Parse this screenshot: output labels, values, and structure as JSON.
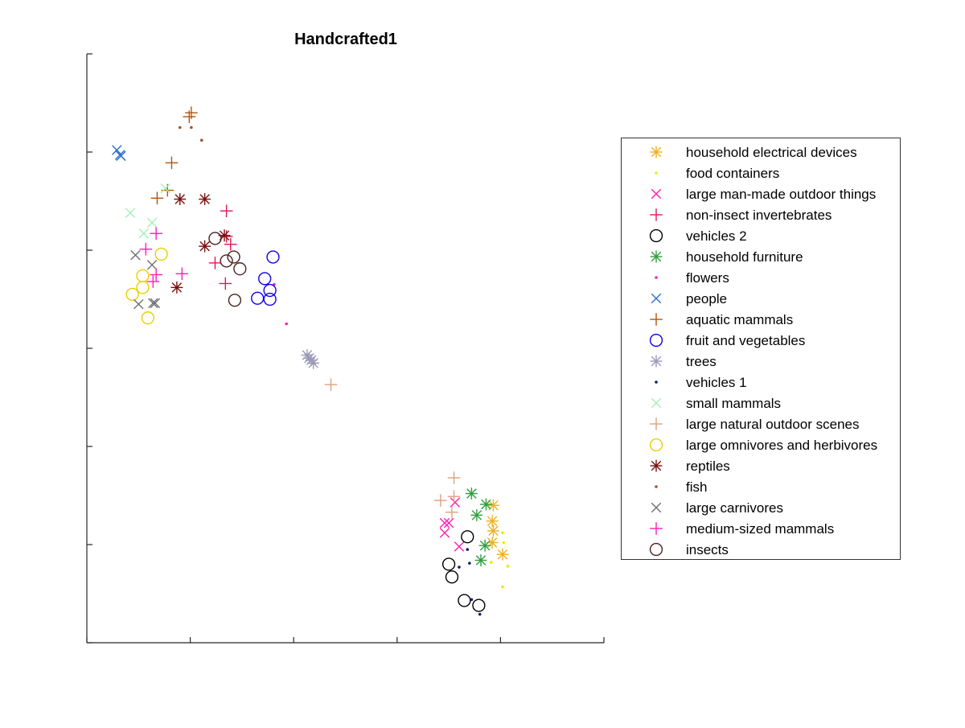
{
  "chart_data": {
    "type": "scatter",
    "title": "Handcrafted1",
    "xlabel": "",
    "ylabel": "",
    "xlim": [
      0,
      5
    ],
    "ylim": [
      0,
      6
    ],
    "xticks": [
      0,
      1,
      2,
      3,
      4,
      5
    ],
    "yticks": [
      0,
      1,
      2,
      3,
      4,
      5,
      6
    ],
    "tick_labels_shown": false,
    "grid": false,
    "legend_position": "right",
    "series": [
      {
        "name": "household electrical devices",
        "marker": "asterisk",
        "color": "#EDB120",
        "points": [
          [
            3.93,
            1.4
          ],
          [
            3.92,
            1.24
          ],
          [
            3.93,
            1.14
          ],
          [
            3.92,
            1.02
          ],
          [
            4.02,
            0.9
          ]
        ]
      },
      {
        "name": "food containers",
        "marker": "dot",
        "color": "#EDEB00",
        "points": [
          [
            4.02,
            1.12
          ],
          [
            4.03,
            1.02
          ],
          [
            3.91,
            0.82
          ],
          [
            4.07,
            0.78
          ],
          [
            4.02,
            0.57
          ]
        ]
      },
      {
        "name": "large man-made outdoor things",
        "marker": "x",
        "color": "#FF1FB4",
        "points": [
          [
            3.56,
            1.43
          ],
          [
            3.46,
            1.22
          ],
          [
            3.5,
            1.22
          ],
          [
            3.46,
            1.12
          ],
          [
            3.6,
            0.98
          ]
        ]
      },
      {
        "name": "non-insect invertebrates",
        "marker": "plus",
        "color": "#E0185A",
        "points": [
          [
            1.35,
            4.4
          ],
          [
            1.35,
            4.14
          ],
          [
            1.39,
            4.06
          ],
          [
            1.34,
            3.66
          ],
          [
            1.24,
            3.87
          ]
        ]
      },
      {
        "name": "vehicles 2",
        "marker": "circle",
        "color": "#000000",
        "points": [
          [
            3.68,
            1.08
          ],
          [
            3.5,
            0.8
          ],
          [
            3.53,
            0.67
          ],
          [
            3.65,
            0.43
          ],
          [
            3.79,
            0.38
          ]
        ]
      },
      {
        "name": "household furniture",
        "marker": "asterisk",
        "color": "#2E9E3E",
        "points": [
          [
            3.72,
            1.52
          ],
          [
            3.77,
            1.3
          ],
          [
            3.86,
            1.41
          ],
          [
            3.85,
            0.99
          ],
          [
            3.81,
            0.84
          ]
        ]
      },
      {
        "name": "flowers",
        "marker": "dot",
        "color": "#FF1FB4",
        "points": [
          [
            1.81,
            3.65
          ],
          [
            1.93,
            3.25
          ]
        ]
      },
      {
        "name": "people",
        "marker": "x",
        "color": "#2F6FD0",
        "points": [
          [
            0.29,
            5.02
          ],
          [
            0.32,
            4.97
          ],
          [
            0.33,
            4.96
          ]
        ]
      },
      {
        "name": "aquatic mammals",
        "marker": "plus",
        "color": "#B2560E",
        "points": [
          [
            1.01,
            5.4
          ],
          [
            0.99,
            5.36
          ],
          [
            0.82,
            4.89
          ],
          [
            0.68,
            4.53
          ],
          [
            0.78,
            4.61
          ]
        ]
      },
      {
        "name": "fruit and vegetables",
        "marker": "circle",
        "color": "#1000E8",
        "points": [
          [
            1.8,
            3.93
          ],
          [
            1.72,
            3.71
          ],
          [
            1.77,
            3.59
          ],
          [
            1.65,
            3.51
          ],
          [
            1.77,
            3.5
          ]
        ]
      },
      {
        "name": "trees",
        "marker": "asterisk",
        "color": "#9A9AB8",
        "points": [
          [
            2.13,
            2.93
          ],
          [
            2.15,
            2.9
          ],
          [
            2.17,
            2.88
          ],
          [
            2.19,
            2.85
          ]
        ]
      },
      {
        "name": "vehicles 1",
        "marker": "dot",
        "color": "#0A2070",
        "points": [
          [
            3.68,
            0.95
          ],
          [
            3.6,
            0.77
          ],
          [
            3.7,
            0.81
          ],
          [
            3.72,
            0.44
          ],
          [
            3.8,
            0.29
          ]
        ]
      },
      {
        "name": "small mammals",
        "marker": "x",
        "color": "#A8EFB8",
        "points": [
          [
            0.42,
            4.38
          ],
          [
            0.76,
            4.63
          ],
          [
            0.63,
            4.28
          ],
          [
            0.55,
            4.17
          ]
        ]
      },
      {
        "name": "large natural outdoor scenes",
        "marker": "plus",
        "color": "#E0A080",
        "points": [
          [
            2.36,
            2.63
          ],
          [
            3.55,
            1.68
          ],
          [
            3.55,
            1.49
          ],
          [
            3.42,
            1.45
          ],
          [
            3.53,
            1.33
          ]
        ]
      },
      {
        "name": "large omnivores and herbivores",
        "marker": "circle",
        "color": "#E8D000",
        "points": [
          [
            0.72,
            3.96
          ],
          [
            0.54,
            3.74
          ],
          [
            0.54,
            3.62
          ],
          [
            0.44,
            3.55
          ],
          [
            0.59,
            3.31
          ]
        ]
      },
      {
        "name": "reptiles",
        "marker": "asterisk",
        "color": "#7A0F0F",
        "points": [
          [
            0.9,
            4.52
          ],
          [
            1.14,
            4.52
          ],
          [
            1.33,
            4.15
          ],
          [
            1.14,
            4.04
          ],
          [
            0.87,
            3.62
          ]
        ]
      },
      {
        "name": "fish",
        "marker": "dot",
        "color": "#A0522D",
        "points": [
          [
            0.9,
            5.25
          ],
          [
            1.01,
            5.25
          ],
          [
            1.11,
            5.12
          ]
        ]
      },
      {
        "name": "large carnivores",
        "marker": "x",
        "color": "#707070",
        "points": [
          [
            0.47,
            3.95
          ],
          [
            0.63,
            3.85
          ],
          [
            0.5,
            3.45
          ],
          [
            0.64,
            3.46
          ],
          [
            0.66,
            3.46
          ]
        ]
      },
      {
        "name": "medium-sized mammals",
        "marker": "plus",
        "color": "#FF1FB4",
        "points": [
          [
            0.67,
            4.17
          ],
          [
            0.57,
            4.01
          ],
          [
            0.67,
            3.75
          ],
          [
            0.64,
            3.68
          ],
          [
            0.92,
            3.76
          ]
        ]
      },
      {
        "name": "insects",
        "marker": "circle",
        "color": "#4A2020",
        "points": [
          [
            1.24,
            4.12
          ],
          [
            1.42,
            3.93
          ],
          [
            1.35,
            3.89
          ],
          [
            1.48,
            3.81
          ],
          [
            1.43,
            3.49
          ]
        ]
      }
    ]
  }
}
